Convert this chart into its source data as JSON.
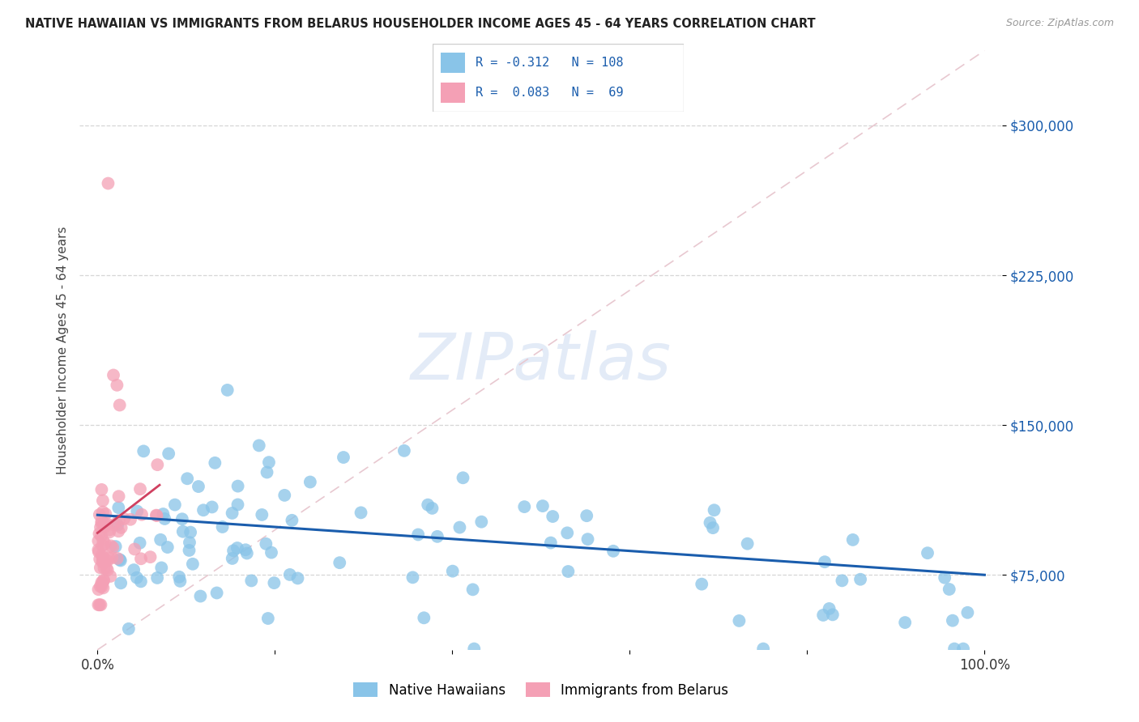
{
  "title": "NATIVE HAWAIIAN VS IMMIGRANTS FROM BELARUS HOUSEHOLDER INCOME AGES 45 - 64 YEARS CORRELATION CHART",
  "source": "Source: ZipAtlas.com",
  "ylabel": "Householder Income Ages 45 - 64 years",
  "blue_R": -0.312,
  "blue_N": 108,
  "pink_R": 0.083,
  "pink_N": 69,
  "xlim": [
    -2,
    102
  ],
  "ylim": [
    37500,
    337500
  ],
  "yticks": [
    75000,
    150000,
    225000,
    300000
  ],
  "ytick_labels": [
    "$75,000",
    "$150,000",
    "$225,000",
    "$300,000"
  ],
  "xtick_positions": [
    0,
    20,
    40,
    60,
    80,
    100
  ],
  "xtick_labels": [
    "0.0%",
    "",
    "",
    "",
    "",
    "100.0%"
  ],
  "blue_color": "#89C4E8",
  "pink_color": "#F4A0B5",
  "blue_line_color": "#1A5DAD",
  "pink_line_color": "#D04060",
  "ref_line_color": "#E8C8D0",
  "watermark_color": "#C8D8F0",
  "grid_color": "#CCCCCC",
  "blue_line_y0": 105000,
  "blue_line_y1": 75000,
  "pink_line_x0": 0,
  "pink_line_y0": 96000,
  "pink_line_x1": 7,
  "pink_line_y1": 120000,
  "ref_line_y0": 37500,
  "ref_line_y1": 337500
}
